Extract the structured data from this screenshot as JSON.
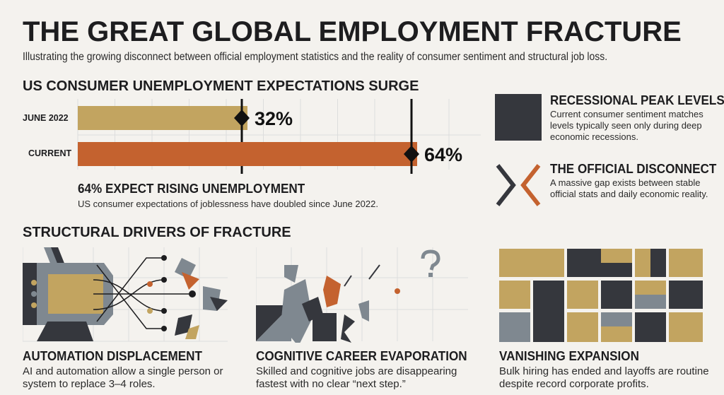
{
  "header": {
    "title": "THE GREAT GLOBAL EMPLOYMENT FRACTURE",
    "subtitle": "Illustrating the growing disconnect between official employment statistics and the reality of consumer sentiment and structural job loss."
  },
  "chart_data": {
    "type": "bar",
    "title": "US CONSUMER UNEMPLOYMENT EXPECTATIONS SURGE",
    "categories": [
      "JUNE 2022",
      "CURRENT"
    ],
    "values": [
      32,
      64
    ],
    "value_labels": [
      "32%",
      "64%"
    ],
    "colors": [
      "#c2a460",
      "#c4622f"
    ],
    "orientation": "horizontal",
    "grid": true,
    "xlim": [
      0,
      76
    ]
  },
  "stat": {
    "headline": "64% EXPECT RISING UNEMPLOYMENT",
    "text": "US consumer expectations of joblessness have doubled since June 2022."
  },
  "callouts": [
    {
      "title": "RECESSIONAL PEAK LEVELS",
      "text": "Current consumer sentiment matches levels typically seen only during deep economic recessions.",
      "icon": "dark-square-icon"
    },
    {
      "title": "THE OFFICIAL DISCONNECT",
      "text": "A massive gap exists between stable official stats and daily economic reality.",
      "icon": "diverging-chevrons-icon"
    }
  ],
  "drivers": {
    "title": "STRUCTURAL DRIVERS OF FRACTURE",
    "items": [
      {
        "title": "AUTOMATION DISPLACEMENT",
        "text": "AI and automation allow a single person or system to replace 3–4 roles.",
        "icon": "robot-machine-icon"
      },
      {
        "title": "COGNITIVE CAREER EVAPORATION",
        "text": "Skilled and cognitive jobs are disappearing fastest with no clear “next step.”",
        "icon": "fragmenting-shapes-icon"
      },
      {
        "title": "VANISHING EXPANSION",
        "text": "Bulk hiring has ended and layoffs are routine despite record corporate profits.",
        "icon": "block-grid-icon"
      }
    ]
  },
  "colors": {
    "gold": "#c2a460",
    "orange": "#c4622f",
    "dark": "#35373d",
    "gray": "#7f8890"
  }
}
